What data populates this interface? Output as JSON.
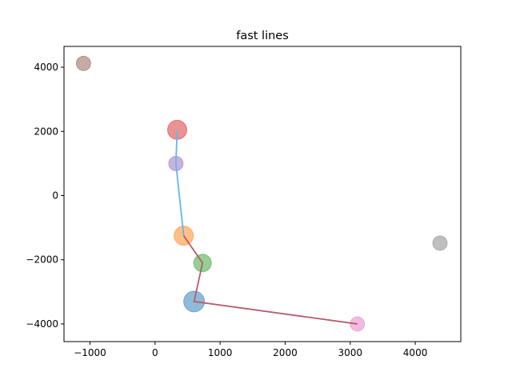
{
  "chart_data": {
    "type": "scatter",
    "title": "fast lines",
    "xlabel": "",
    "ylabel": "",
    "xlim": [
      -1400,
      4700
    ],
    "ylim": [
      -4550,
      4650
    ],
    "x_ticks": [
      -1000,
      0,
      1000,
      2000,
      3000,
      4000
    ],
    "y_ticks": [
      -4000,
      -2000,
      0,
      2000,
      4000
    ],
    "grid": false,
    "points": [
      {
        "x": 600,
        "y": -3300,
        "size": 13,
        "color": "#1f77b4"
      },
      {
        "x": 440,
        "y": -1250,
        "size": 12,
        "color": "#ff7f0e"
      },
      {
        "x": 730,
        "y": -2100,
        "size": 11,
        "color": "#2ca02c"
      },
      {
        "x": 340,
        "y": 2050,
        "size": 12,
        "color": "#d62728"
      },
      {
        "x": 320,
        "y": 1000,
        "size": 9,
        "color": "#9467bd"
      },
      {
        "x": -1100,
        "y": 4120,
        "size": 9,
        "color": "#8c564b"
      },
      {
        "x": 3110,
        "y": -4000,
        "size": 9,
        "color": "#e377c2"
      },
      {
        "x": 4380,
        "y": -1480,
        "size": 9,
        "color": "#7f7f7f"
      }
    ],
    "lines": [
      {
        "color": "#64b5f0",
        "points": [
          [
            340,
            2050
          ],
          [
            320,
            1000
          ],
          [
            440,
            -1250
          ]
        ]
      },
      {
        "color": "#b65b69",
        "points": [
          [
            440,
            -1250
          ],
          [
            730,
            -2100
          ],
          [
            600,
            -3300
          ],
          [
            3110,
            -4000
          ]
        ]
      }
    ]
  }
}
